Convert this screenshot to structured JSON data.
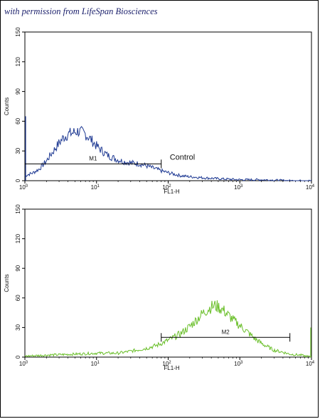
{
  "credit": "with permission from LifeSpan Biosciences",
  "chart_data": [
    {
      "type": "line",
      "title": "",
      "xlabel": "FL1-H",
      "ylabel": "Counts",
      "xscale": "log",
      "xlim": [
        1,
        10000
      ],
      "ylim": [
        0,
        150
      ],
      "xticks": [
        {
          "base": "10",
          "exp": "0"
        },
        {
          "base": "10",
          "exp": "1"
        },
        {
          "base": "10",
          "exp": "2"
        },
        {
          "base": "10",
          "exp": "3"
        },
        {
          "base": "10",
          "exp": "4"
        }
      ],
      "yticks": [
        "0",
        "30",
        "60",
        "90",
        "120",
        "150"
      ],
      "annotation": "Control",
      "marker": {
        "label": "M1",
        "range": [
          1,
          80
        ],
        "y": 17
      },
      "series": [
        {
          "color": "#1f3a93",
          "x": [
            1,
            1.3,
            1.6,
            2,
            2.5,
            3,
            3.5,
            4,
            4.5,
            5,
            5.5,
            6,
            7,
            8,
            9,
            10,
            12,
            14,
            16,
            20,
            25,
            30,
            40,
            50,
            60,
            80,
            100,
            150,
            200,
            300,
            500,
            1000,
            2000,
            5000,
            10000
          ],
          "y": [
            5,
            8,
            12,
            20,
            30,
            38,
            44,
            47,
            48,
            49,
            50,
            49,
            47,
            43,
            39,
            35,
            30,
            26,
            24,
            21,
            19,
            18,
            17,
            15,
            13,
            10,
            8,
            5,
            4,
            3,
            2,
            1,
            1,
            0,
            0
          ]
        }
      ]
    },
    {
      "type": "line",
      "title": "",
      "xlabel": "FL1-H",
      "ylabel": "Counts",
      "xscale": "log",
      "xlim": [
        1,
        10000
      ],
      "ylim": [
        0,
        150
      ],
      "xticks": [
        {
          "base": "10",
          "exp": "0"
        },
        {
          "base": "10",
          "exp": "1"
        },
        {
          "base": "10",
          "exp": "2"
        },
        {
          "base": "10",
          "exp": "3"
        },
        {
          "base": "10",
          "exp": "4"
        }
      ],
      "yticks": [
        "0",
        "30",
        "60",
        "90",
        "120",
        "150"
      ],
      "marker": {
        "label": "M2",
        "range": [
          80,
          5000
        ],
        "y": 20
      },
      "series": [
        {
          "color": "#6abf2a",
          "x": [
            1,
            2,
            5,
            10,
            20,
            30,
            50,
            70,
            100,
            150,
            200,
            250,
            300,
            350,
            400,
            450,
            500,
            600,
            700,
            800,
            1000,
            1300,
            1600,
            2000,
            2500,
            3000,
            4000,
            5000,
            7000,
            10000
          ],
          "y": [
            1,
            2,
            3,
            4,
            4,
            6,
            9,
            12,
            17,
            24,
            31,
            38,
            44,
            48,
            51,
            52,
            51,
            47,
            42,
            38,
            32,
            25,
            19,
            14,
            10,
            7,
            5,
            3,
            2,
            0
          ]
        }
      ]
    }
  ]
}
